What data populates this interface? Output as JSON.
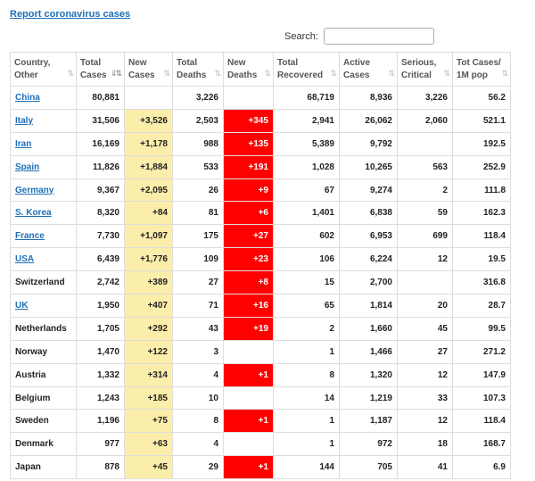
{
  "report_link": "Report coronavirus cases",
  "search": {
    "label": "Search:",
    "value": "",
    "placeholder": ""
  },
  "columns": [
    {
      "line1": "Country,",
      "line2": "Other",
      "sort": "⇅"
    },
    {
      "line1": "Total",
      "line2": "Cases",
      "sort": "⇓⇅",
      "active": true
    },
    {
      "line1": "New",
      "line2": "Cases",
      "sort": "⇅"
    },
    {
      "line1": "Total",
      "line2": "Deaths",
      "sort": "⇅"
    },
    {
      "line1": "New",
      "line2": "Deaths",
      "sort": "⇅"
    },
    {
      "line1": "Total",
      "line2": "Recovered",
      "sort": "⇅"
    },
    {
      "line1": "Active",
      "line2": "Cases",
      "sort": "⇅"
    },
    {
      "line1": "Serious,",
      "line2": "Critical",
      "sort": "⇅"
    },
    {
      "line1": "Tot Cases/",
      "line2": "1M pop",
      "sort": "⇅"
    }
  ],
  "rows": [
    {
      "country": "China",
      "link": true,
      "total_cases": "80,881",
      "new_cases": "",
      "total_deaths": "3,226",
      "new_deaths": "",
      "total_recovered": "68,719",
      "active_cases": "8,936",
      "serious": "3,226",
      "per_million": "56.2"
    },
    {
      "country": "Italy",
      "link": true,
      "total_cases": "31,506",
      "new_cases": "+3,526",
      "total_deaths": "2,503",
      "new_deaths": "+345",
      "total_recovered": "2,941",
      "active_cases": "26,062",
      "serious": "2,060",
      "per_million": "521.1"
    },
    {
      "country": "Iran",
      "link": true,
      "total_cases": "16,169",
      "new_cases": "+1,178",
      "total_deaths": "988",
      "new_deaths": "+135",
      "total_recovered": "5,389",
      "active_cases": "9,792",
      "serious": "",
      "per_million": "192.5"
    },
    {
      "country": "Spain",
      "link": true,
      "total_cases": "11,826",
      "new_cases": "+1,884",
      "total_deaths": "533",
      "new_deaths": "+191",
      "total_recovered": "1,028",
      "active_cases": "10,265",
      "serious": "563",
      "per_million": "252.9"
    },
    {
      "country": "Germany",
      "link": true,
      "total_cases": "9,367",
      "new_cases": "+2,095",
      "total_deaths": "26",
      "new_deaths": "+9",
      "total_recovered": "67",
      "active_cases": "9,274",
      "serious": "2",
      "per_million": "111.8"
    },
    {
      "country": "S. Korea",
      "link": true,
      "total_cases": "8,320",
      "new_cases": "+84",
      "total_deaths": "81",
      "new_deaths": "+6",
      "total_recovered": "1,401",
      "active_cases": "6,838",
      "serious": "59",
      "per_million": "162.3"
    },
    {
      "country": "France",
      "link": true,
      "total_cases": "7,730",
      "new_cases": "+1,097",
      "total_deaths": "175",
      "new_deaths": "+27",
      "total_recovered": "602",
      "active_cases": "6,953",
      "serious": "699",
      "per_million": "118.4"
    },
    {
      "country": "USA",
      "link": true,
      "total_cases": "6,439",
      "new_cases": "+1,776",
      "total_deaths": "109",
      "new_deaths": "+23",
      "total_recovered": "106",
      "active_cases": "6,224",
      "serious": "12",
      "per_million": "19.5"
    },
    {
      "country": "Switzerland",
      "link": false,
      "total_cases": "2,742",
      "new_cases": "+389",
      "total_deaths": "27",
      "new_deaths": "+8",
      "total_recovered": "15",
      "active_cases": "2,700",
      "serious": "",
      "per_million": "316.8"
    },
    {
      "country": "UK",
      "link": true,
      "total_cases": "1,950",
      "new_cases": "+407",
      "total_deaths": "71",
      "new_deaths": "+16",
      "total_recovered": "65",
      "active_cases": "1,814",
      "serious": "20",
      "per_million": "28.7"
    },
    {
      "country": "Netherlands",
      "link": false,
      "total_cases": "1,705",
      "new_cases": "+292",
      "total_deaths": "43",
      "new_deaths": "+19",
      "total_recovered": "2",
      "active_cases": "1,660",
      "serious": "45",
      "per_million": "99.5"
    },
    {
      "country": "Norway",
      "link": false,
      "total_cases": "1,470",
      "new_cases": "+122",
      "total_deaths": "3",
      "new_deaths": "",
      "total_recovered": "1",
      "active_cases": "1,466",
      "serious": "27",
      "per_million": "271.2"
    },
    {
      "country": "Austria",
      "link": false,
      "total_cases": "1,332",
      "new_cases": "+314",
      "total_deaths": "4",
      "new_deaths": "+1",
      "total_recovered": "8",
      "active_cases": "1,320",
      "serious": "12",
      "per_million": "147.9"
    },
    {
      "country": "Belgium",
      "link": false,
      "total_cases": "1,243",
      "new_cases": "+185",
      "total_deaths": "10",
      "new_deaths": "",
      "total_recovered": "14",
      "active_cases": "1,219",
      "serious": "33",
      "per_million": "107.3"
    },
    {
      "country": "Sweden",
      "link": false,
      "total_cases": "1,196",
      "new_cases": "+75",
      "total_deaths": "8",
      "new_deaths": "+1",
      "total_recovered": "1",
      "active_cases": "1,187",
      "serious": "12",
      "per_million": "118.4"
    },
    {
      "country": "Denmark",
      "link": false,
      "total_cases": "977",
      "new_cases": "+63",
      "total_deaths": "4",
      "new_deaths": "",
      "total_recovered": "1",
      "active_cases": "972",
      "serious": "18",
      "per_million": "168.7"
    },
    {
      "country": "Japan",
      "link": false,
      "total_cases": "878",
      "new_cases": "+45",
      "total_deaths": "29",
      "new_deaths": "+1",
      "total_recovered": "144",
      "active_cases": "705",
      "serious": "41",
      "per_million": "6.9"
    }
  ],
  "colors": {
    "link": "#1e6fb5",
    "new_cases_bg": "#fbeeab",
    "new_deaths_bg": "#ff0000"
  }
}
